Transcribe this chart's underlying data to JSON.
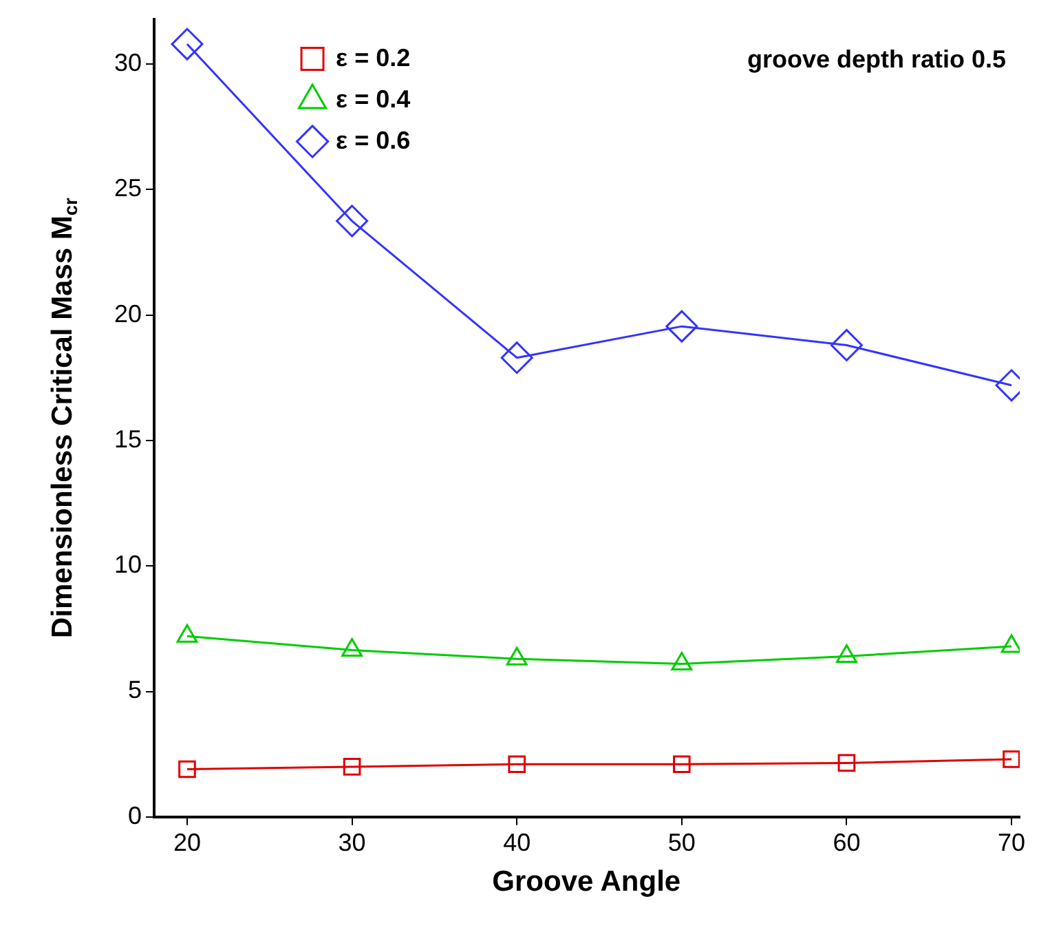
{
  "chart_data": {
    "type": "line",
    "xlabel": "Groove Angle",
    "ylabel": "Dimensionless Critical Mass M$_{cr}$",
    "annotations": [
      "groove depth ratio 0.5"
    ],
    "x": [
      20,
      30,
      40,
      50,
      60,
      70
    ],
    "series": [
      {
        "name": "ε = 0.2",
        "color": "#e00000",
        "marker": "square",
        "values": [
          1.9,
          2.0,
          2.1,
          2.1,
          2.15,
          2.3
        ]
      },
      {
        "name": "ε = 0.4",
        "color": "#00cc00",
        "marker": "triangle",
        "values": [
          7.2,
          6.65,
          6.3,
          6.1,
          6.4,
          6.8
        ]
      },
      {
        "name": "ε = 0.6",
        "color": "#3333ff",
        "marker": "diamond",
        "values": [
          30.8,
          23.75,
          18.3,
          19.55,
          18.8,
          17.2
        ]
      }
    ],
    "xlim": [
      18,
      70.5
    ],
    "xticks": [
      20,
      30,
      40,
      50,
      60,
      70
    ],
    "ylim": [
      0,
      31.8
    ],
    "yticks": [
      0,
      5,
      10,
      15,
      20,
      25,
      30
    ],
    "grid": false,
    "legend": "top left",
    "line_style": "solid"
  }
}
